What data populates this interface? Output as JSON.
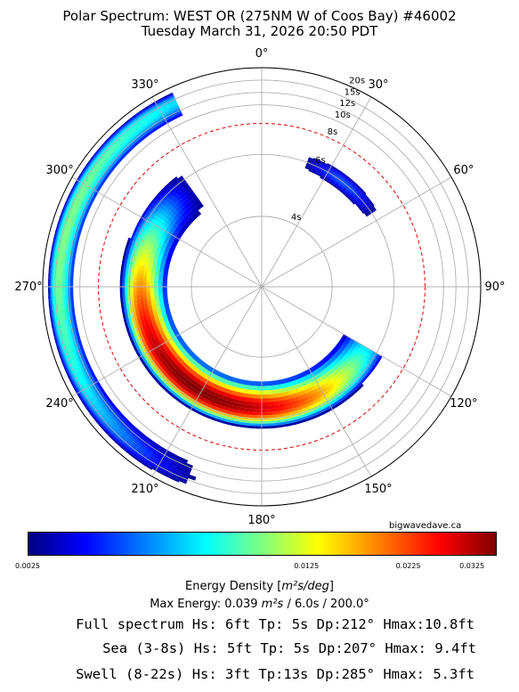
{
  "header": {
    "title": "Polar Spectrum: WEST OR (275NM W of Coos Bay) #46002",
    "subtitle": "Tuesday March 31, 2026 20:50 PDT"
  },
  "chart_data": {
    "type": "heatmap",
    "projection": "polar",
    "angular_axis": {
      "units": "degrees",
      "zero": "north",
      "direction": "clockwise",
      "tick_labels": [
        "0°",
        "30°",
        "60°",
        "90°",
        "120°",
        "150°",
        "180°",
        "210°",
        "240°",
        "270°",
        "300°",
        "330°"
      ]
    },
    "radial_axis": {
      "units": "seconds (period)",
      "scale": "reciprocal",
      "ticks": [
        {
          "value": 4,
          "label": "4s"
        },
        {
          "value": 6,
          "label": "6s"
        },
        {
          "value": 8,
          "label": "8s"
        },
        {
          "value": 10,
          "label": "10s"
        },
        {
          "value": 12,
          "label": "12s"
        },
        {
          "value": 15,
          "label": "15s"
        },
        {
          "value": 20,
          "label": "20s"
        }
      ],
      "dashed_reference_circle": 8
    },
    "colorbar": {
      "label_prefix": "Energy Density [",
      "label_unit": "m²s/deg",
      "label_suffix": "]",
      "range": [
        0.0025,
        0.0375
      ],
      "colormap": "jet",
      "ticks": [
        {
          "value": 0.0025,
          "label": "0.0025"
        },
        {
          "value": 0.0125,
          "label": "0.0125"
        },
        {
          "value": 0.0225,
          "label": "0.0225"
        },
        {
          "value": 0.0325,
          "label": "0.0325"
        }
      ]
    },
    "energy_regions": [
      {
        "dir_from": 175,
        "dir_to": 335,
        "period_peak": 14,
        "period_inner": 11,
        "period_outer": 18,
        "peak_direction": 285,
        "peak_intensity": 0.5
      },
      {
        "dir_from": 20,
        "dir_to": 55,
        "period_peak": 6,
        "period_inner": 5.6,
        "period_outer": 6.4,
        "peak_direction": 38,
        "peak_intensity": 0.2
      },
      {
        "dir_from": 120,
        "dir_to": 330,
        "period_peak": 5.5,
        "period_inner": 4.6,
        "period_outer": 6.5,
        "peak_direction": 212,
        "peak_intensity": 1.0
      }
    ]
  },
  "credit": "bigwavedave.ca",
  "max_energy": {
    "prefix": "Max Energy: 0.039 ",
    "unit": "m²s",
    "suffix": "  /  6.0s  /  200.0°"
  },
  "stats": {
    "full": "Full spectrum Hs: 6ft Tp: 5s Dp:212° Hmax:10.8ft",
    "sea": "Sea (3-8s) Hs: 5ft Tp: 5s Dp:207° Hmax: 9.4ft",
    "swell": "Swell (8-22s) Hs: 3ft Tp:13s Dp:285° Hmax: 5.3ft"
  }
}
